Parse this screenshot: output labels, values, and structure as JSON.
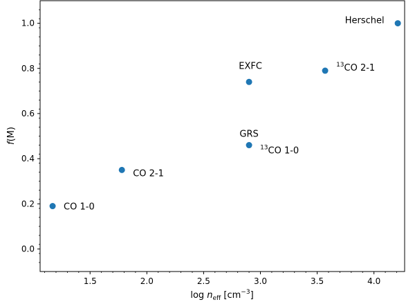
{
  "chart_data": {
    "type": "scatter",
    "ylabel": "f(M)",
    "xlabel": "log n_eff [cm^-3]",
    "xlim": [
      1.06,
      4.27
    ],
    "ylim": [
      -0.1,
      1.1
    ],
    "xticks": [
      1.5,
      2.0,
      2.5,
      3.0,
      3.5,
      4.0
    ],
    "yticks": [
      0.0,
      0.2,
      0.4,
      0.6,
      0.8,
      1.0
    ],
    "xtick_labels": [
      "1.5",
      "2.0",
      "2.5",
      "3.0",
      "3.5",
      "4.0"
    ],
    "ytick_labels": [
      "0.0",
      "0.2",
      "0.4",
      "0.6",
      "0.8",
      "1.0"
    ],
    "marker_color": "#1f77b4",
    "points": [
      {
        "label": "CO 1-0",
        "x": 1.17,
        "y": 0.19
      },
      {
        "label": "CO 2-1",
        "x": 1.78,
        "y": 0.35
      },
      {
        "label": "13CO 1-0",
        "x": 2.9,
        "y": 0.46
      },
      {
        "label": "GRS",
        "x": 2.9,
        "y": 0.46
      },
      {
        "label": "EXFC",
        "x": 2.9,
        "y": 0.74
      },
      {
        "label": "13CO 2-1",
        "x": 3.57,
        "y": 0.79
      },
      {
        "label": "Herschel",
        "x": 4.21,
        "y": 1.0
      }
    ]
  },
  "axis_text": {
    "ylabel_italic": "f",
    "ylabel_rest": "(M)",
    "xlabel_log": "log ",
    "xlabel_n": "n",
    "xlabel_sub": "eff",
    "xlabel_unit": " [cm",
    "xlabel_sup": "−3",
    "xlabel_close": "]"
  }
}
